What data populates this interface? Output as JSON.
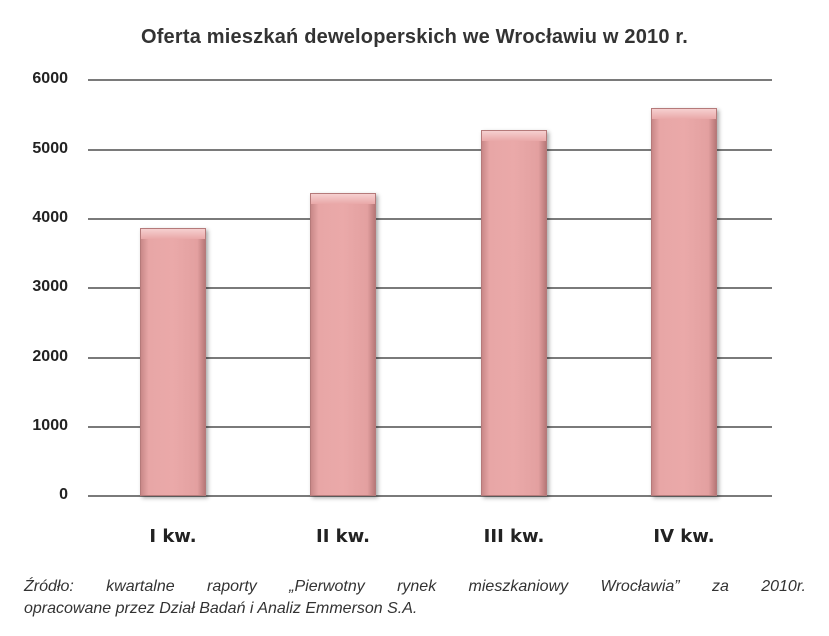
{
  "chart_data": {
    "type": "bar",
    "title": "Oferta mieszkań deweloperskich we Wrocławiu w 2010 r.",
    "categories": [
      "I kw.",
      "II kw.",
      "III kw.",
      "IV kw."
    ],
    "values": [
      3870,
      4370,
      5280,
      5600
    ],
    "xlabel": "",
    "ylabel": "",
    "ylim": [
      0,
      6000
    ],
    "yticks": [
      "0",
      "1000",
      "2000",
      "3000",
      "4000",
      "5000",
      "6000"
    ],
    "grid": true,
    "legend": "none",
    "bar_color": "#e8a6a6"
  },
  "source": {
    "line1": "Źródło: kwartalne raporty „Pierwotny rynek mieszkaniowy Wrocławia” za 2010r.",
    "line2": "opracowane przez Dział Badań i Analiz Emmerson S.A."
  }
}
